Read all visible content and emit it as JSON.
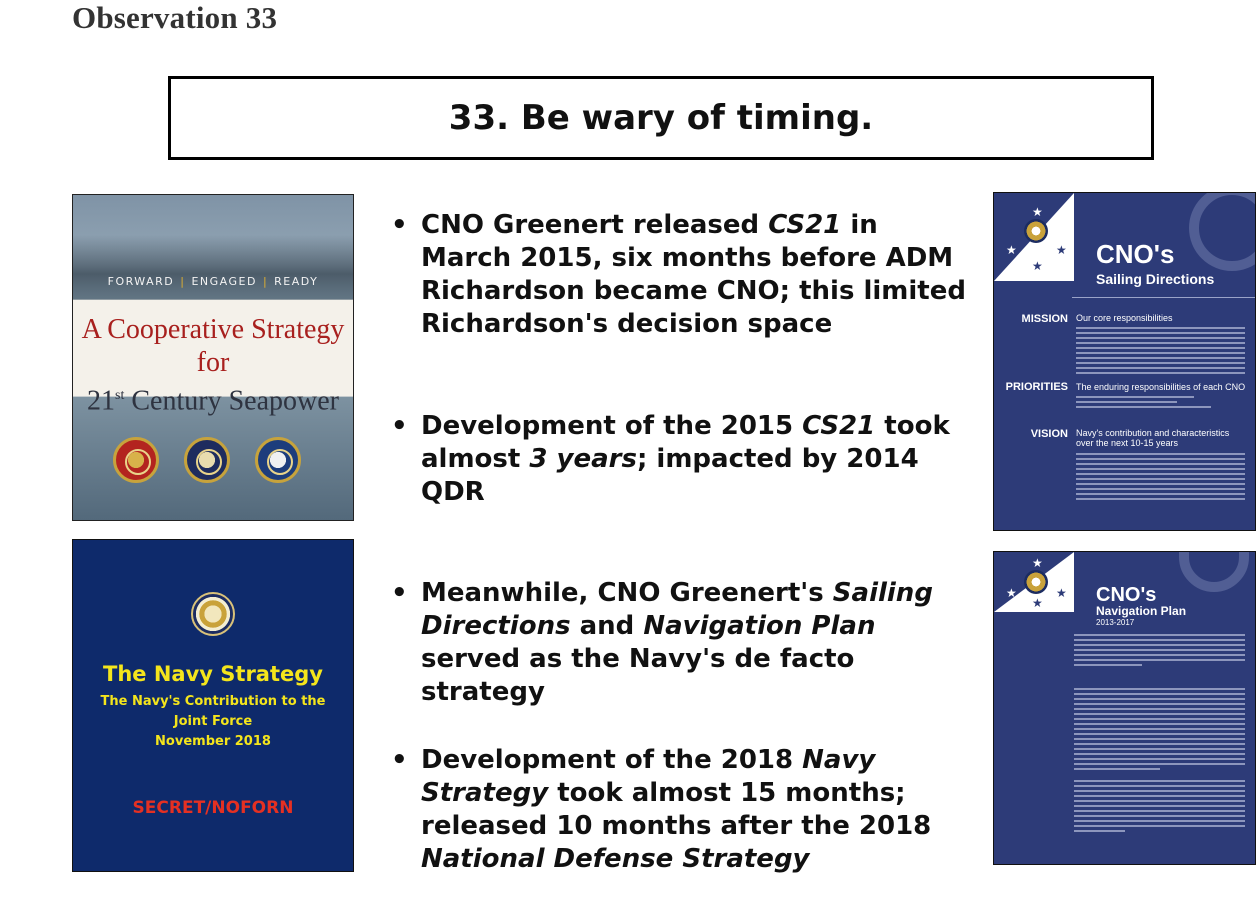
{
  "heading": "Observation 33",
  "title": "33. Be wary of timing.",
  "cover_cs21": {
    "tagline": [
      "FORWARD",
      "ENGAGED",
      "READY"
    ],
    "title_line1": "A Cooperative Strategy for",
    "title_line2_pre": "21",
    "title_line2_sup": "st",
    "title_line2_post": " Century Seapower"
  },
  "cover_navy_strategy": {
    "title": "The Navy Strategy",
    "subtitle_line1": "The Navy's Contribution to the",
    "subtitle_line2": "Joint Force",
    "date": "November 2018",
    "classification": "SECRET/NOFORN"
  },
  "bullets": {
    "b1": {
      "t1": "CNO Greenert released ",
      "i1": "CS21",
      "t2": " in March 2015, six months before ADM Richardson became CNO; this limited Richardson's decision space"
    },
    "b2": {
      "t1": "Development of the 2015 ",
      "i1": "CS21",
      "t2": " took almost ",
      "i2": "3 years",
      "t3": "; impacted by 2014 QDR"
    },
    "b3": {
      "t1": "Meanwhile, CNO Greenert's ",
      "i1": "Sailing Directions",
      "t2": " and ",
      "i2": "Navigation Plan",
      "t3": " served as the Navy's de facto strategy"
    },
    "b4": {
      "t1": "Development of the 2018 ",
      "i1": "Navy Strategy",
      "t2": " took almost 15 months; released 10 months after the 2018 ",
      "i2": "National Defense Strategy"
    }
  },
  "cno_sailing": {
    "title": "CNO's",
    "subtitle": "Sailing Directions",
    "mission_label": "MISSION",
    "mission_head": "Our core responsibilities",
    "priorities_label": "PRIORITIES",
    "priorities_head": "The enduring responsibilities of each CNO",
    "vision_label": "VISION",
    "vision_head": "Navy's contribution and characteristics over the next 10-15 years"
  },
  "cno_navplan": {
    "title": "CNO's",
    "subtitle": "Navigation Plan",
    "years": "2013-2017"
  }
}
